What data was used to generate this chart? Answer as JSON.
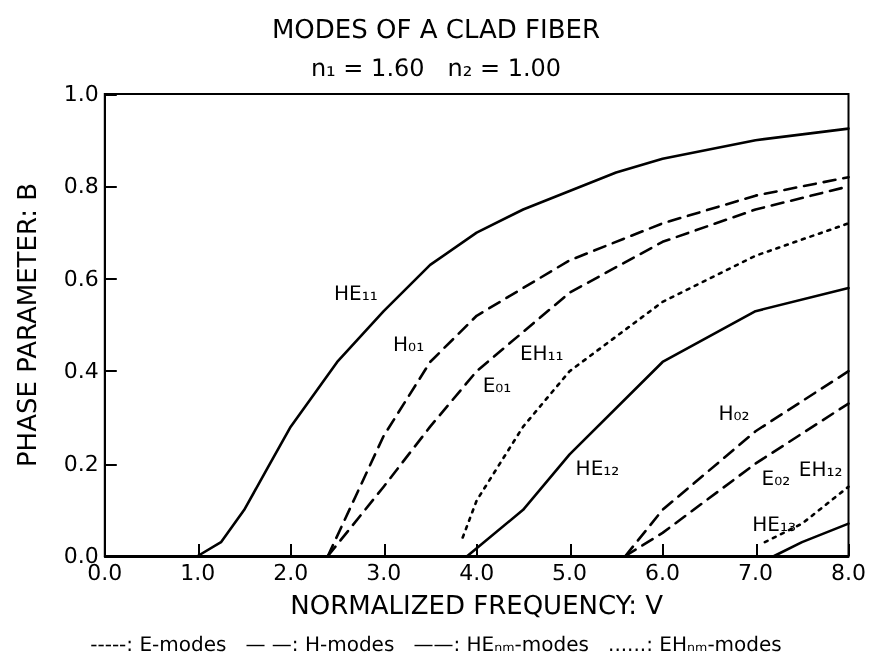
{
  "chart_data": {
    "type": "line",
    "title": "MODES OF A CLAD FIBER",
    "subtitle": "n₁ = 1.60   n₂ = 1.00",
    "xlabel": "NORMALIZED FREQUENCY: V",
    "ylabel": "PHASE PARAMETER: B",
    "xlim": [
      0,
      8
    ],
    "ylim": [
      0,
      1
    ],
    "xticks": [
      {
        "value": 0,
        "label": "0.0"
      },
      {
        "value": 1,
        "label": "1.0"
      },
      {
        "value": 2,
        "label": "2.0"
      },
      {
        "value": 3,
        "label": "3.0"
      },
      {
        "value": 4,
        "label": "4.0"
      },
      {
        "value": 5,
        "label": "5.0"
      },
      {
        "value": 6,
        "label": "6.0"
      },
      {
        "value": 7,
        "label": "7.0"
      },
      {
        "value": 8,
        "label": "8.0"
      }
    ],
    "yticks": [
      {
        "value": 0,
        "label": "0.0"
      },
      {
        "value": 0.2,
        "label": "0.2"
      },
      {
        "value": 0.4,
        "label": "0.4"
      },
      {
        "value": 0.6,
        "label": "0.6"
      },
      {
        "value": 0.8,
        "label": "0.8"
      },
      {
        "value": 1,
        "label": "1.0"
      }
    ],
    "grid": false,
    "marker": "none",
    "series": [
      {
        "color": "#000000",
        "line_style": "solid",
        "x": [
          1.0,
          1.25,
          1.5,
          1.75,
          2.0,
          2.5,
          3.0,
          3.5,
          4.0,
          4.5,
          5.0,
          5.5,
          6.0,
          7.0,
          8.0
        ],
        "values": [
          0,
          0.03,
          0.1,
          0.19,
          0.28,
          0.42,
          0.53,
          0.63,
          0.7,
          0.75,
          0.79,
          0.83,
          0.86,
          0.9,
          0.925
        ]
      },
      {
        "color": "#000000",
        "line_style": "dashed",
        "x": [
          2.4,
          2.7,
          3.0,
          3.5,
          4.0,
          5.0,
          6.0,
          7.0,
          8.0
        ],
        "values": [
          0,
          0.13,
          0.26,
          0.42,
          0.52,
          0.64,
          0.72,
          0.78,
          0.82
        ]
      },
      {
        "color": "#000000",
        "line_style": "dashed",
        "x": [
          2.4,
          3.0,
          3.5,
          4.0,
          5.0,
          6.0,
          7.0,
          8.0
        ],
        "values": [
          0,
          0.15,
          0.28,
          0.4,
          0.57,
          0.68,
          0.75,
          0.8
        ]
      },
      {
        "color": "#000000",
        "line_style": "dotted",
        "x": [
          3.85,
          4.0,
          4.5,
          5.0,
          6.0,
          7.0,
          8.0
        ],
        "values": [
          0.04,
          0.12,
          0.28,
          0.4,
          0.55,
          0.65,
          0.72
        ]
      },
      {
        "color": "#000000",
        "line_style": "solid",
        "x": [
          3.9,
          4.5,
          5.0,
          6.0,
          7.0,
          8.0
        ],
        "values": [
          0,
          0.1,
          0.22,
          0.42,
          0.53,
          0.58
        ]
      },
      {
        "color": "#000000",
        "line_style": "dashed",
        "x": [
          5.6,
          6.0,
          7.0,
          8.0
        ],
        "values": [
          0,
          0.1,
          0.27,
          0.4
        ]
      },
      {
        "color": "#000000",
        "line_style": "dashed",
        "x": [
          5.6,
          6.0,
          7.0,
          8.0
        ],
        "values": [
          0,
          0.05,
          0.2,
          0.33
        ]
      },
      {
        "color": "#000000",
        "line_style": "dotted",
        "x": [
          7.1,
          7.5,
          8.0
        ],
        "values": [
          0.03,
          0.07,
          0.15
        ]
      },
      {
        "color": "#000000",
        "line_style": "solid",
        "x": [
          7.2,
          7.5,
          8.0
        ],
        "values": [
          0,
          0.03,
          0.07
        ]
      }
    ],
    "annotations": [
      {
        "text": "HE₁₁",
        "x": 3.0,
        "y": 0.53
      },
      {
        "text": "H₀₁",
        "x": 3.5,
        "y": 0.42
      },
      {
        "text": "E₀₁",
        "x": 4.0,
        "y": 0.4
      },
      {
        "text": "EH₁₁",
        "x": 5.0,
        "y": 0.4
      },
      {
        "text": "HE₁₂",
        "x": 5.0,
        "y": 0.22
      },
      {
        "text": "H₀₂",
        "x": 7.0,
        "y": 0.27
      },
      {
        "text": "E₀₂",
        "x": 7.0,
        "y": 0.2
      },
      {
        "text": "EH₁₂",
        "x": 8.0,
        "y": 0.15
      },
      {
        "text": "HE₁₃",
        "x": 7.5,
        "y": 0.03
      },
      "-----: E-modes   — —: H-modes   ——: HEₙₘ-modes   ......: EHₙₘ-modes"
    ]
  }
}
